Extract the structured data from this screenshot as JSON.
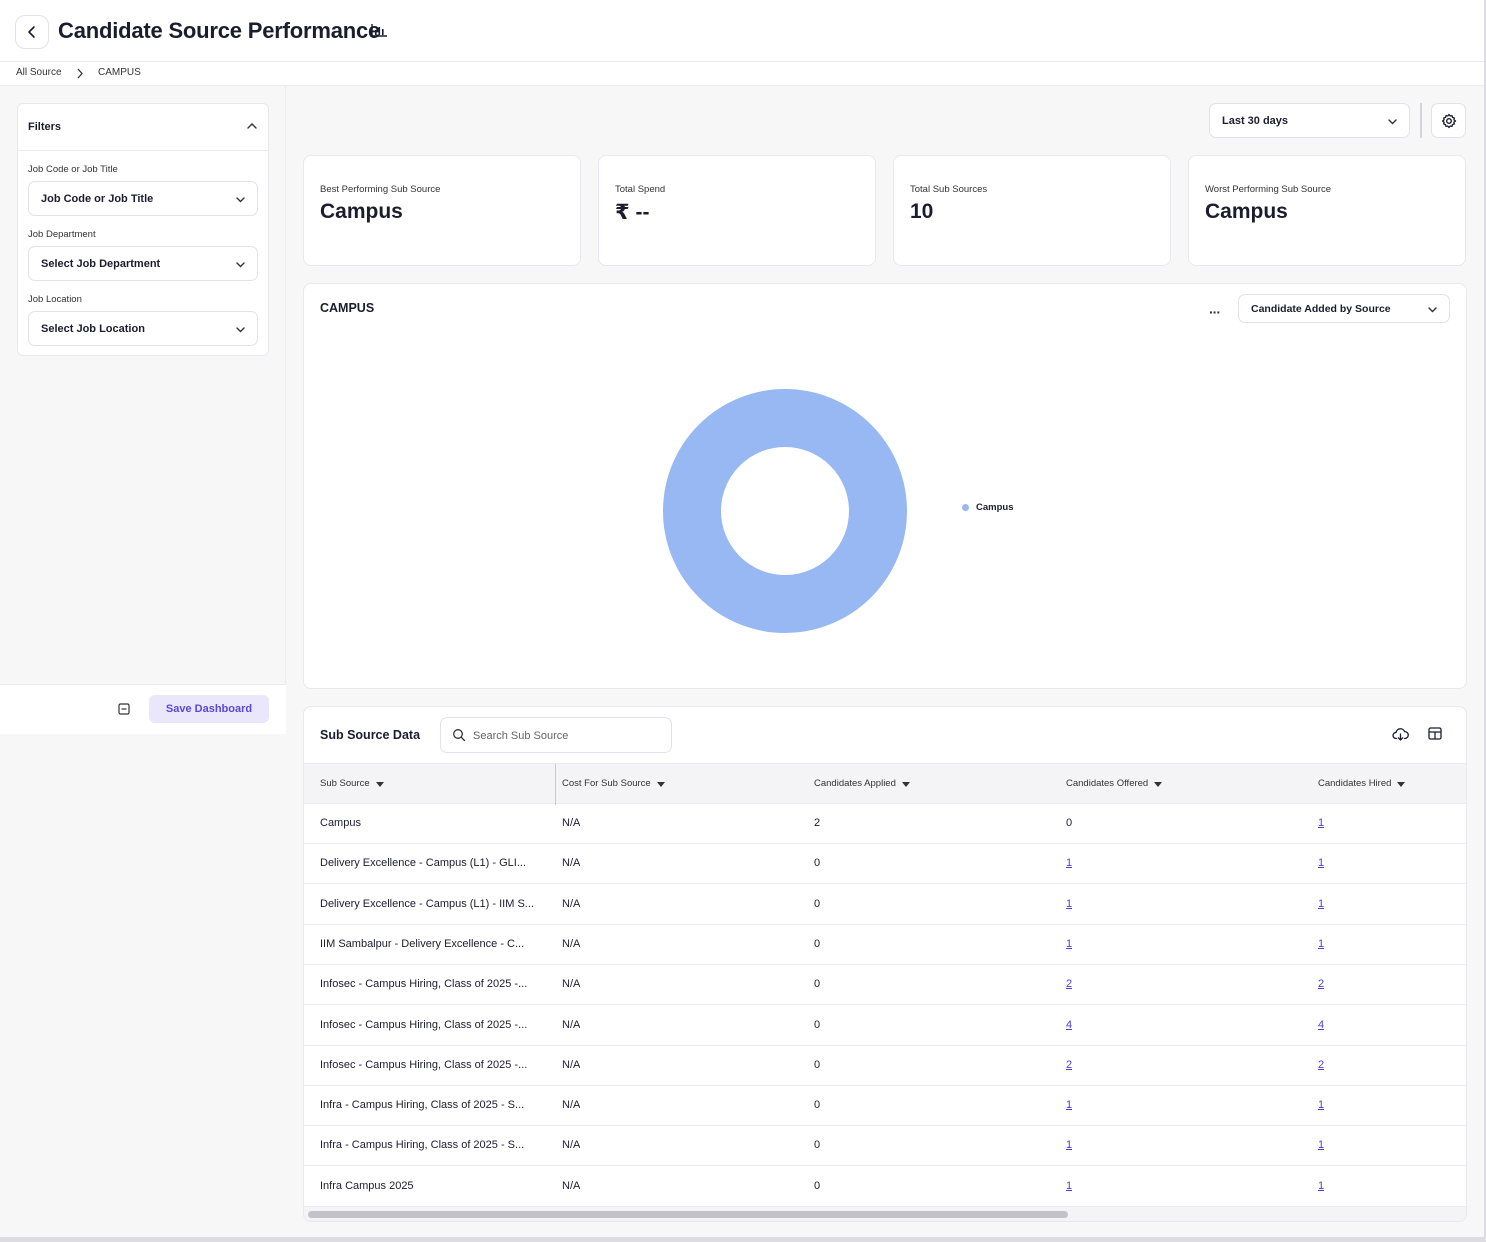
{
  "header": {
    "title": "Candidate Source Performance",
    "breadcrumb": [
      "All Source",
      "CAMPUS"
    ]
  },
  "filters": {
    "title": "Filters",
    "fields": [
      {
        "label": "Job Code or Job Title",
        "value": "Job Code or Job Title"
      },
      {
        "label": "Job Department",
        "value": "Select Job Department"
      },
      {
        "label": "Job Location",
        "value": "Select Job Location"
      }
    ],
    "save_label": "Save Dashboard"
  },
  "toolbar": {
    "date_range": "Last 30 days"
  },
  "kpis": [
    {
      "label": "Best Performing Sub Source",
      "value": "Campus"
    },
    {
      "label": "Total Spend",
      "value": "₹ --"
    },
    {
      "label": "Total Sub Sources",
      "value": "10"
    },
    {
      "label": "Worst Performing Sub Source",
      "value": "Campus"
    }
  ],
  "chart_card": {
    "title": "CAMPUS",
    "more_label": "···",
    "metric_select": "Candidate Added by Source"
  },
  "chart_data": {
    "type": "pie",
    "categories": [
      "Campus"
    ],
    "values": [
      100
    ],
    "colors": [
      "#97b8f2"
    ],
    "legend": "right"
  },
  "table": {
    "title": "Sub Source Data",
    "search_placeholder": "Search Sub Source",
    "columns": [
      "Sub Source",
      "Cost For Sub Source",
      "Candidates Applied",
      "Candidates Offered",
      "Candidates Hired"
    ],
    "rows": [
      [
        "Campus",
        "N/A",
        "2",
        "0",
        "1"
      ],
      [
        "Delivery Excellence - Campus (L1) - GLI...",
        "N/A",
        "0",
        "1",
        "1"
      ],
      [
        "Delivery Excellence - Campus (L1) - IIM S...",
        "N/A",
        "0",
        "1",
        "1"
      ],
      [
        "IIM Sambalpur - Delivery Excellence - C...",
        "N/A",
        "0",
        "1",
        "1"
      ],
      [
        "Infosec - Campus Hiring, Class of 2025 -...",
        "N/A",
        "0",
        "2",
        "2"
      ],
      [
        "Infosec - Campus Hiring, Class of 2025 -...",
        "N/A",
        "0",
        "4",
        "4"
      ],
      [
        "Infosec - Campus Hiring, Class of 2025 -...",
        "N/A",
        "0",
        "2",
        "2"
      ],
      [
        "Infra - Campus Hiring, Class of 2025 - S...",
        "N/A",
        "0",
        "1",
        "1"
      ],
      [
        "Infra - Campus Hiring, Class of 2025 - S...",
        "N/A",
        "0",
        "1",
        "1"
      ],
      [
        "Infra Campus 2025",
        "N/A",
        "0",
        "1",
        "1"
      ]
    ],
    "link_flags": [
      [
        false,
        false,
        false,
        false,
        true
      ],
      [
        false,
        false,
        false,
        true,
        true
      ],
      [
        false,
        false,
        false,
        true,
        true
      ],
      [
        false,
        false,
        false,
        true,
        true
      ],
      [
        false,
        false,
        false,
        true,
        true
      ],
      [
        false,
        false,
        false,
        true,
        true
      ],
      [
        false,
        false,
        false,
        true,
        true
      ],
      [
        false,
        false,
        false,
        true,
        true
      ],
      [
        false,
        false,
        false,
        true,
        true
      ],
      [
        false,
        false,
        false,
        true,
        true
      ]
    ]
  }
}
